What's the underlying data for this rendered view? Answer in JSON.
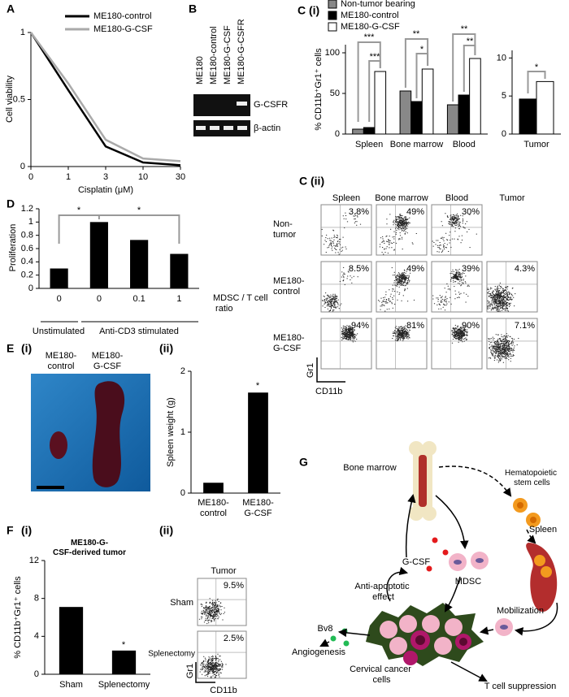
{
  "panel_labels": {
    "a": "A",
    "b": "B",
    "c1": "C (i)",
    "c2": "C (ii)",
    "d": "D",
    "e": "E",
    "e1": "(i)",
    "e2": "(ii)",
    "f": "F",
    "f1": "(i)",
    "f2": "(ii)",
    "g": "G"
  },
  "chart_data": [
    {
      "type": "line",
      "x_label": "Cisplatin (μM)",
      "y_label": "Cell viability",
      "categories": [
        "0",
        "1",
        "3",
        "10",
        "30"
      ],
      "series": [
        {
          "name": "ME180-control",
          "color": "#000000",
          "values": [
            1,
            0.57,
            0.15,
            0.03,
            0.01
          ]
        },
        {
          "name": "ME180-G-CSF",
          "color": "#aaaaaa",
          "values": [
            1,
            0.62,
            0.2,
            0.06,
            0.04
          ]
        }
      ],
      "ylim": [
        0,
        1
      ],
      "yticks": [
        0,
        0.5,
        1
      ]
    },
    {
      "type": "bar",
      "y_label": "% CD11b⁺Gr1⁺ cells",
      "categories": [
        "Spleen",
        "Bone marrow",
        "Blood"
      ],
      "series": [
        {
          "name": "Non-tumor bearing",
          "color": "#888888",
          "values": [
            6,
            53,
            36
          ]
        },
        {
          "name": "ME180-control",
          "color": "#000000",
          "values": [
            8,
            40,
            48
          ]
        },
        {
          "name": "ME180-G-CSF",
          "color": "#ffffff",
          "values": [
            77,
            80,
            93
          ]
        }
      ],
      "ylim": [
        0,
        110
      ],
      "yticks": [
        0,
        50,
        100
      ],
      "annotations": [
        "***",
        "***",
        "**",
        "*",
        "**",
        "**"
      ]
    },
    {
      "type": "bar",
      "categories": [
        "Tumor"
      ],
      "series": [
        {
          "color": "#000000",
          "values": [
            4.6
          ]
        },
        {
          "color": "#ffffff",
          "values": [
            6.9
          ]
        }
      ],
      "ylim": [
        0,
        11
      ],
      "yticks": [
        0,
        5,
        10
      ],
      "annotations": [
        "*"
      ]
    },
    {
      "type": "bar",
      "y_label": "Proliferation",
      "x_label": "MDSC / T cell ratio",
      "categories": [
        "0",
        "0",
        "0.1",
        "1"
      ],
      "values": [
        0.3,
        1,
        0.73,
        0.52
      ],
      "color": "#000000",
      "ylim": [
        0,
        1.2
      ],
      "yticks": [
        0,
        0.2,
        0.4,
        0.6,
        0.8,
        1,
        1.2
      ],
      "groups": [
        "Unstimulated",
        "Anti-CD3 stimulated"
      ],
      "annotations": [
        "*",
        "*"
      ]
    },
    {
      "type": "bar",
      "y_label": "Spleen weight (g)",
      "categories": [
        "ME180-control",
        "ME180-G-CSF"
      ],
      "values": [
        0.17,
        1.65
      ],
      "color": "#000000",
      "ylim": [
        0,
        2
      ],
      "yticks": [
        0,
        1,
        2
      ],
      "annotations": [
        "*"
      ]
    },
    {
      "type": "bar",
      "title": "ME180-G-CSF-derived tumor",
      "y_label": "% CD11b⁺Gr1⁺ cells",
      "categories": [
        "Sham",
        "Splenectomy"
      ],
      "values": [
        7.1,
        2.5
      ],
      "color": "#000000",
      "ylim": [
        0,
        12
      ],
      "yticks": [
        0,
        4,
        8,
        12
      ],
      "annotations": [
        "*"
      ]
    }
  ],
  "gel": {
    "lanes": [
      "ME180",
      "ME180-control",
      "ME180-G-CSF",
      "ME180-G-CSFR"
    ],
    "bands": [
      "G-CSFR",
      "β-actin"
    ]
  },
  "flow": {
    "columns": [
      "Spleen",
      "Bone marrow",
      "Blood",
      "Tumor"
    ],
    "rows": [
      {
        "label": "Non-tumor",
        "percents": [
          "3.8%",
          "49%",
          "30%"
        ]
      },
      {
        "label": "ME180-control",
        "percents": [
          "8.5%",
          "49%",
          "39%",
          "4.3%"
        ]
      },
      {
        "label": "ME180-G-CSF",
        "percents": [
          "94%",
          "81%",
          "90%",
          "7.1%"
        ]
      }
    ],
    "y_label": "Gr1",
    "x_label": "CD11b"
  },
  "photo": {
    "labels": [
      "ME180-control",
      "ME180-G-CSF"
    ]
  },
  "flow_f": {
    "title": "Tumor",
    "rows": [
      {
        "label": "Sham",
        "percent": "9.5%"
      },
      {
        "label": "Splenectomy",
        "percent": "2.5%"
      }
    ],
    "y_label": "Gr1",
    "x_label": "CD11b"
  },
  "diagram": {
    "labels": [
      "Bone marrow",
      "Hematopoietic stem cells",
      "Spleen",
      "G-CSF",
      "MDSC",
      "Anti-apoptotic effect",
      "Mobilization",
      "Bv8",
      "Angiogenesis",
      "Cervical cancer cells",
      "T cell suppression"
    ]
  }
}
